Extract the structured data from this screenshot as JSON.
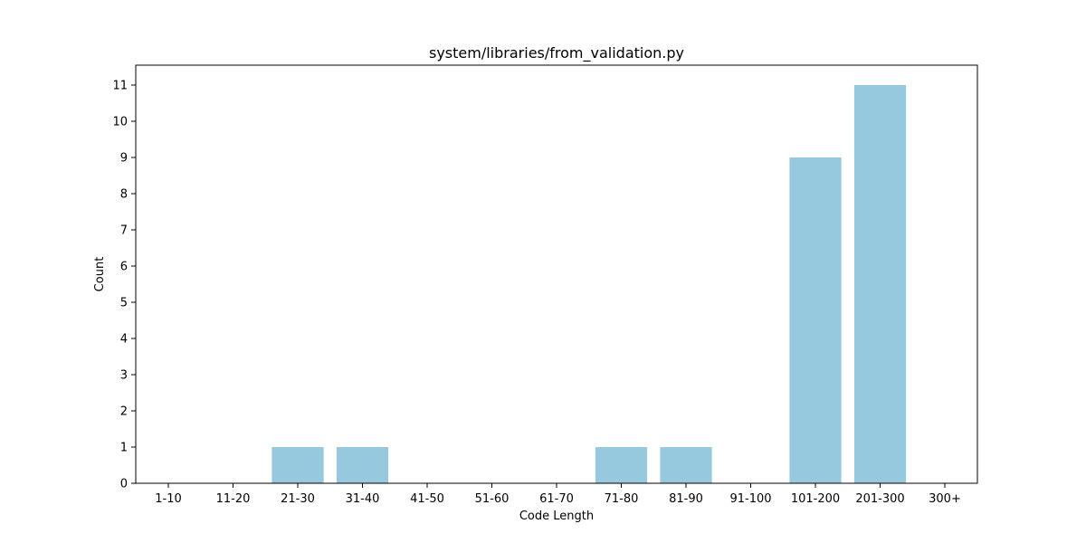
{
  "chart_data": {
    "type": "bar",
    "title": "system/libraries/from_validation.py",
    "xlabel": "Code Length",
    "ylabel": "Count",
    "categories": [
      "1-10",
      "11-20",
      "21-30",
      "31-40",
      "41-50",
      "51-60",
      "61-70",
      "71-80",
      "81-90",
      "91-100",
      "101-200",
      "201-300",
      "300+"
    ],
    "values": [
      0,
      0,
      1,
      1,
      0,
      0,
      0,
      1,
      1,
      0,
      9,
      11,
      0
    ],
    "ylim": [
      0,
      11.55
    ],
    "yticks": [
      0,
      1,
      2,
      3,
      4,
      5,
      6,
      7,
      8,
      9,
      10,
      11
    ],
    "grid": false,
    "legend": "none",
    "bar_color": "#96c9dd"
  }
}
